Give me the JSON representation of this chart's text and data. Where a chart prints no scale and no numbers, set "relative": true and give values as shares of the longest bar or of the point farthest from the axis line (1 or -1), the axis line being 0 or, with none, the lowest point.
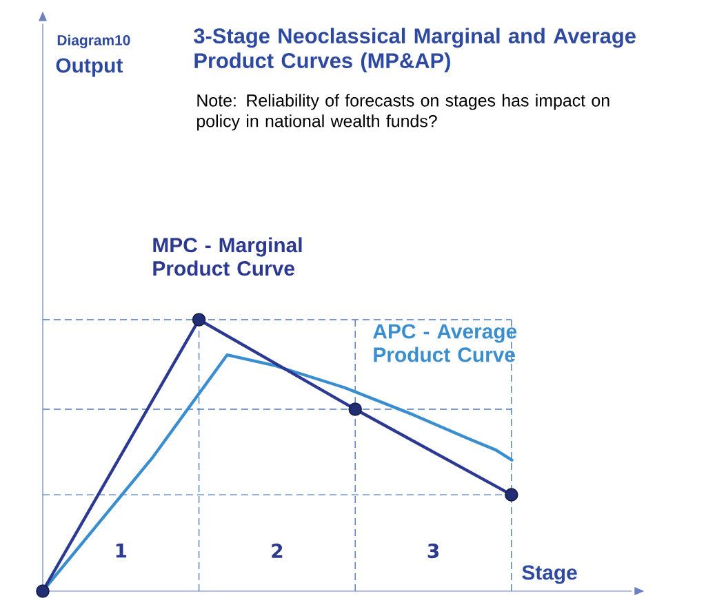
{
  "chart_data": {
    "type": "line",
    "title": "3-Stage Neoclassical Marginal and Average Product Curves (MP&AP)",
    "subtitle": "Note: Reliability of forecasts on stages has impact on policy in national wealth funds?",
    "xlabel": "Stage",
    "annotations": [
      "Diagram10",
      "Output"
    ],
    "relative": true,
    "xlim": [
      0,
      3.77
    ],
    "xticks": [
      {
        "value": 0.5,
        "label": "1"
      },
      {
        "value": 1.5,
        "label": "2"
      },
      {
        "value": 2.5,
        "label": "3"
      }
    ],
    "tick_labels": "x",
    "grid": false,
    "legend": false,
    "line_style": "solid",
    "series": [
      {
        "name": "MPC - Marginal Product Curve",
        "color": "#2b3990",
        "x": [
          0,
          1,
          2,
          3
        ],
        "values": [
          0,
          1,
          0.67,
          0.355
        ],
        "marker": "circle"
      },
      {
        "name": "APC - Average Product Curve",
        "color": "#3a8ed0",
        "x": [
          0,
          0.7,
          1.18,
          1.49,
          1.93,
          2.37,
          2.73,
          2.9,
          3.01
        ],
        "values": [
          0,
          0.49,
          0.87,
          0.83,
          0.75,
          0.65,
          0.56,
          0.52,
          0.48
        ],
        "marker": "none"
      }
    ],
    "ref_lines": [
      {
        "axis": "y",
        "value": 1,
        "color": "#4a78c8",
        "line_style": "dashed"
      },
      {
        "axis": "y",
        "value": 0.67,
        "color": "#4a78c8",
        "line_style": "dashed"
      },
      {
        "axis": "y",
        "value": 0.355,
        "color": "#4a78c8",
        "line_style": "dashed"
      },
      {
        "axis": "x",
        "value": 1,
        "color": "#4a78c8",
        "line_style": "dashed"
      },
      {
        "axis": "x",
        "value": 2,
        "color": "#4a78c8",
        "line_style": "dashed"
      },
      {
        "axis": "x",
        "value": 3,
        "color": "#4a78c8",
        "line_style": "dashed"
      }
    ]
  }
}
